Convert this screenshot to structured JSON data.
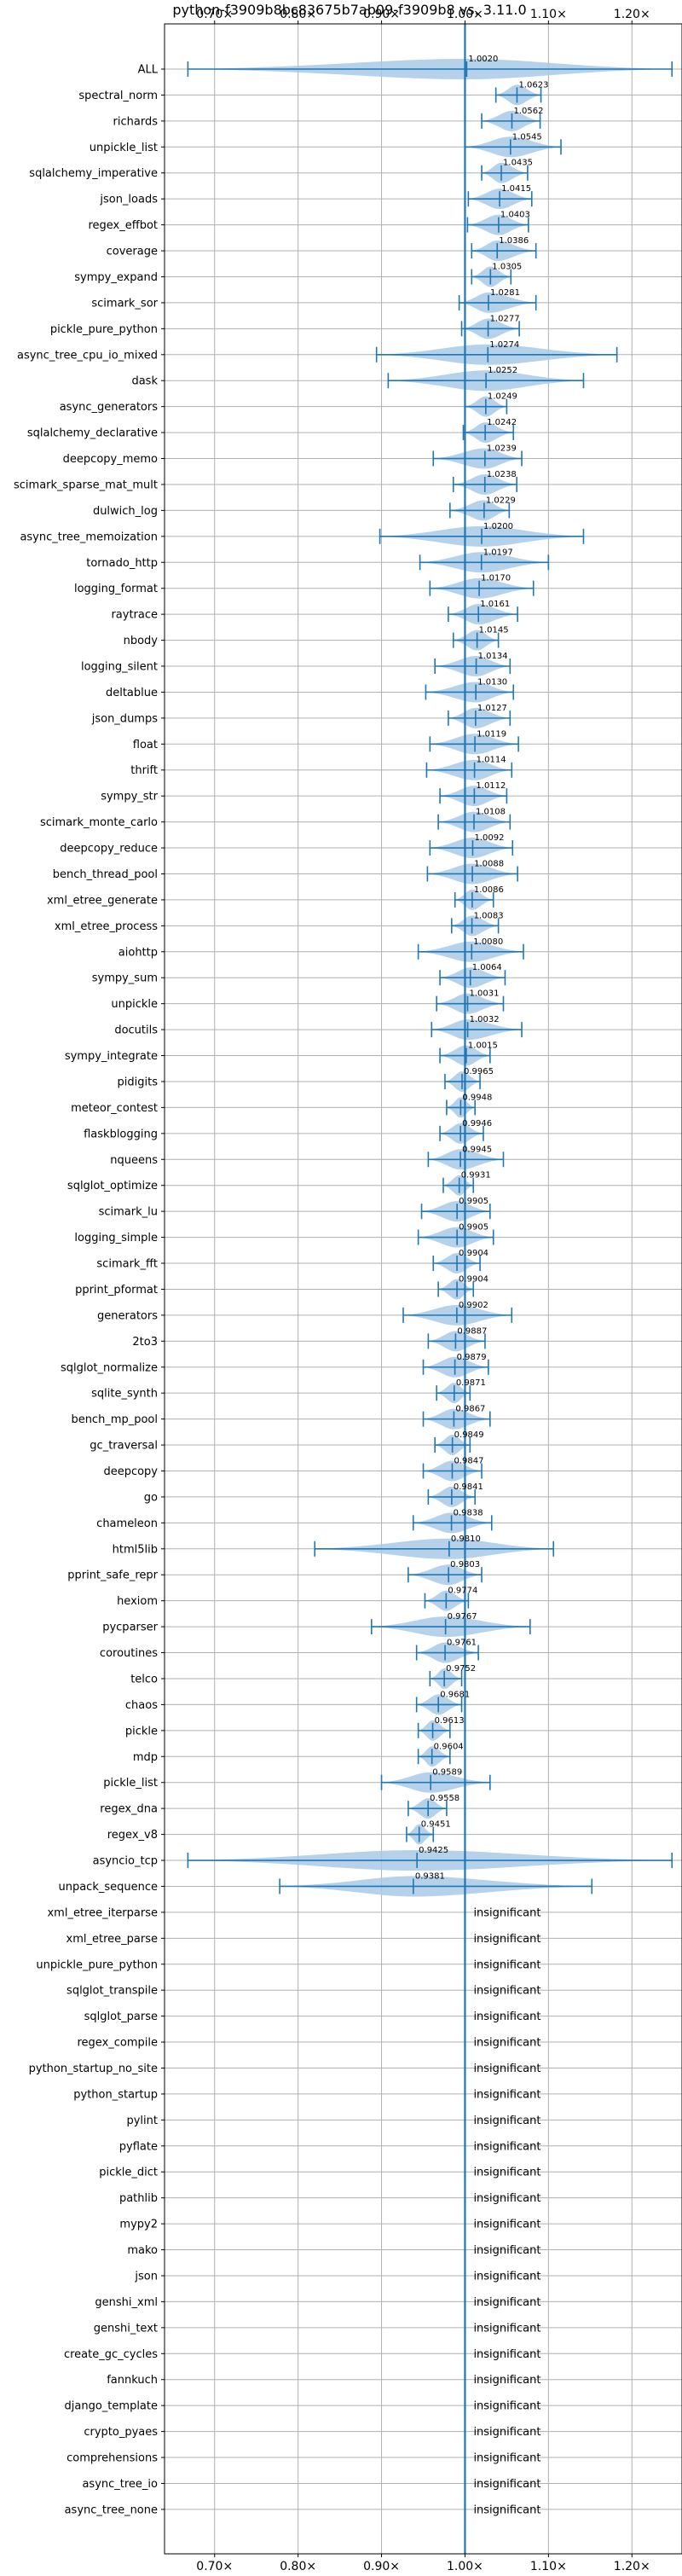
{
  "chart_data": {
    "type": "violin",
    "title": "python-f3909b8bc83675b7ab09-f3909b8 vs. 3.11.0",
    "xlim": [
      0.64,
      1.26
    ],
    "x_ticks": [
      0.7,
      0.8,
      0.9,
      1.0,
      1.1,
      1.2
    ],
    "x_tick_labels": [
      "0.70×",
      "0.80×",
      "0.90×",
      "1.00×",
      "1.10×",
      "1.20×"
    ],
    "grid": true,
    "reference_line": 1.0,
    "insignificant_label": "insignificant",
    "rows": [
      {
        "name": "ALL",
        "value": 1.002,
        "value_label": "1.0020",
        "min": 0.668,
        "max": 1.248,
        "width": 1.0
      },
      {
        "name": "spectral_norm",
        "value": 1.0623,
        "value_label": "1.0623",
        "min": 1.037,
        "max": 1.091,
        "width": 1.0
      },
      {
        "name": "richards",
        "value": 1.0562,
        "value_label": "1.0562",
        "min": 1.02,
        "max": 1.09,
        "width": 1.0
      },
      {
        "name": "unpickle_list",
        "value": 1.0545,
        "value_label": "1.0545",
        "min": 1.0,
        "max": 1.115,
        "width": 1.0
      },
      {
        "name": "sqlalchemy_imperative",
        "value": 1.0435,
        "value_label": "1.0435",
        "min": 1.02,
        "max": 1.075,
        "width": 1.0
      },
      {
        "name": "json_loads",
        "value": 1.0415,
        "value_label": "1.0415",
        "min": 1.004,
        "max": 1.08,
        "width": 1.0
      },
      {
        "name": "regex_effbot",
        "value": 1.0403,
        "value_label": "1.0403",
        "min": 1.003,
        "max": 1.076,
        "width": 1.0
      },
      {
        "name": "coverage",
        "value": 1.0386,
        "value_label": "1.0386",
        "min": 1.008,
        "max": 1.085,
        "width": 1.0
      },
      {
        "name": "sympy_expand",
        "value": 1.0305,
        "value_label": "1.0305",
        "min": 1.008,
        "max": 1.055,
        "width": 1.0
      },
      {
        "name": "scimark_sor",
        "value": 1.0281,
        "value_label": "1.0281",
        "min": 0.993,
        "max": 1.085,
        "width": 1.0
      },
      {
        "name": "pickle_pure_python",
        "value": 1.0277,
        "value_label": "1.0277",
        "min": 0.996,
        "max": 1.065,
        "width": 1.0
      },
      {
        "name": "async_tree_cpu_io_mixed",
        "value": 1.0274,
        "value_label": "1.0274",
        "min": 0.894,
        "max": 1.182,
        "width": 1.0
      },
      {
        "name": "dask",
        "value": 1.0252,
        "value_label": "1.0252",
        "min": 0.908,
        "max": 1.142,
        "width": 1.0
      },
      {
        "name": "async_generators",
        "value": 1.0249,
        "value_label": "1.0249",
        "min": 1.0,
        "max": 1.05,
        "width": 1.0
      },
      {
        "name": "sqlalchemy_declarative",
        "value": 1.0242,
        "value_label": "1.0242",
        "min": 0.998,
        "max": 1.058,
        "width": 1.0
      },
      {
        "name": "deepcopy_memo",
        "value": 1.0239,
        "value_label": "1.0239",
        "min": 0.962,
        "max": 1.068,
        "width": 1.0
      },
      {
        "name": "scimark_sparse_mat_mult",
        "value": 1.0238,
        "value_label": "1.0238",
        "min": 0.986,
        "max": 1.062,
        "width": 1.0
      },
      {
        "name": "dulwich_log",
        "value": 1.0229,
        "value_label": "1.0229",
        "min": 0.982,
        "max": 1.053,
        "width": 1.0
      },
      {
        "name": "async_tree_memoization",
        "value": 1.02,
        "value_label": "1.0200",
        "min": 0.898,
        "max": 1.142,
        "width": 1.0
      },
      {
        "name": "tornado_http",
        "value": 1.0197,
        "value_label": "1.0197",
        "min": 0.946,
        "max": 1.1,
        "width": 1.0
      },
      {
        "name": "logging_format",
        "value": 1.017,
        "value_label": "1.0170",
        "min": 0.958,
        "max": 1.082,
        "width": 1.0
      },
      {
        "name": "raytrace",
        "value": 1.0161,
        "value_label": "1.0161",
        "min": 0.98,
        "max": 1.063,
        "width": 1.0
      },
      {
        "name": "nbody",
        "value": 1.0145,
        "value_label": "1.0145",
        "min": 0.986,
        "max": 1.04,
        "width": 1.0
      },
      {
        "name": "logging_silent",
        "value": 1.0134,
        "value_label": "1.0134",
        "min": 0.964,
        "max": 1.054,
        "width": 1.0
      },
      {
        "name": "deltablue",
        "value": 1.013,
        "value_label": "1.0130",
        "min": 0.953,
        "max": 1.058,
        "width": 1.0
      },
      {
        "name": "json_dumps",
        "value": 1.0127,
        "value_label": "1.0127",
        "min": 0.98,
        "max": 1.054,
        "width": 1.0
      },
      {
        "name": "float",
        "value": 1.0119,
        "value_label": "1.0119",
        "min": 0.958,
        "max": 1.064,
        "width": 1.0
      },
      {
        "name": "thrift",
        "value": 1.0114,
        "value_label": "1.0114",
        "min": 0.954,
        "max": 1.056,
        "width": 1.0
      },
      {
        "name": "sympy_str",
        "value": 1.0112,
        "value_label": "1.0112",
        "min": 0.97,
        "max": 1.05,
        "width": 1.0
      },
      {
        "name": "scimark_monte_carlo",
        "value": 1.0108,
        "value_label": "1.0108",
        "min": 0.968,
        "max": 1.054,
        "width": 1.0
      },
      {
        "name": "deepcopy_reduce",
        "value": 1.0092,
        "value_label": "1.0092",
        "min": 0.958,
        "max": 1.057,
        "width": 1.0
      },
      {
        "name": "bench_thread_pool",
        "value": 1.0088,
        "value_label": "1.0088",
        "min": 0.955,
        "max": 1.063,
        "width": 1.0
      },
      {
        "name": "xml_etree_generate",
        "value": 1.0086,
        "value_label": "1.0086",
        "min": 0.988,
        "max": 1.034,
        "width": 1.0
      },
      {
        "name": "xml_etree_process",
        "value": 1.0083,
        "value_label": "1.0083",
        "min": 0.984,
        "max": 1.04,
        "width": 1.0
      },
      {
        "name": "aiohttp",
        "value": 1.008,
        "value_label": "1.0080",
        "min": 0.944,
        "max": 1.07,
        "width": 1.0
      },
      {
        "name": "sympy_sum",
        "value": 1.0064,
        "value_label": "1.0064",
        "min": 0.97,
        "max": 1.048,
        "width": 1.0
      },
      {
        "name": "unpickle",
        "value": 1.0031,
        "value_label": "1.0031",
        "min": 0.966,
        "max": 1.046,
        "width": 1.0
      },
      {
        "name": "docutils",
        "value": 1.0032,
        "value_label": "1.0032",
        "min": 0.96,
        "max": 1.068,
        "width": 1.0
      },
      {
        "name": "sympy_integrate",
        "value": 1.0015,
        "value_label": "1.0015",
        "min": 0.97,
        "max": 1.03,
        "width": 1.0
      },
      {
        "name": "pidigits",
        "value": 0.9965,
        "value_label": "0.9965",
        "min": 0.976,
        "max": 1.018,
        "width": 1.0
      },
      {
        "name": "meteor_contest",
        "value": 0.9948,
        "value_label": "0.9948",
        "min": 0.978,
        "max": 1.012,
        "width": 1.0
      },
      {
        "name": "flaskblogging",
        "value": 0.9946,
        "value_label": "0.9946",
        "min": 0.97,
        "max": 1.022,
        "width": 1.0
      },
      {
        "name": "nqueens",
        "value": 0.9945,
        "value_label": "0.9945",
        "min": 0.956,
        "max": 1.046,
        "width": 1.0
      },
      {
        "name": "sqlglot_optimize",
        "value": 0.9931,
        "value_label": "0.9931",
        "min": 0.974,
        "max": 1.01,
        "width": 1.0
      },
      {
        "name": "scimark_lu",
        "value": 0.9905,
        "value_label": "0.9905",
        "min": 0.948,
        "max": 1.03,
        "width": 1.0
      },
      {
        "name": "logging_simple",
        "value": 0.9905,
        "value_label": "0.9905",
        "min": 0.944,
        "max": 1.034,
        "width": 1.0
      },
      {
        "name": "scimark_fft",
        "value": 0.9904,
        "value_label": "0.9904",
        "min": 0.962,
        "max": 1.018,
        "width": 1.0
      },
      {
        "name": "pprint_pformat",
        "value": 0.9904,
        "value_label": "0.9904",
        "min": 0.968,
        "max": 1.01,
        "width": 1.0
      },
      {
        "name": "generators",
        "value": 0.9902,
        "value_label": "0.9902",
        "min": 0.926,
        "max": 1.056,
        "width": 1.0
      },
      {
        "name": "2to3",
        "value": 0.9887,
        "value_label": "0.9887",
        "min": 0.956,
        "max": 1.024,
        "width": 1.0
      },
      {
        "name": "sqlglot_normalize",
        "value": 0.9879,
        "value_label": "0.9879",
        "min": 0.95,
        "max": 1.028,
        "width": 1.0
      },
      {
        "name": "sqlite_synth",
        "value": 0.9871,
        "value_label": "0.9871",
        "min": 0.966,
        "max": 1.006,
        "width": 1.0
      },
      {
        "name": "bench_mp_pool",
        "value": 0.9867,
        "value_label": "0.9867",
        "min": 0.95,
        "max": 1.03,
        "width": 1.0
      },
      {
        "name": "gc_traversal",
        "value": 0.9849,
        "value_label": "0.9849",
        "min": 0.964,
        "max": 1.006,
        "width": 1.0
      },
      {
        "name": "deepcopy",
        "value": 0.9847,
        "value_label": "0.9847",
        "min": 0.95,
        "max": 1.02,
        "width": 1.0
      },
      {
        "name": "go",
        "value": 0.9841,
        "value_label": "0.9841",
        "min": 0.956,
        "max": 1.012,
        "width": 1.0
      },
      {
        "name": "chameleon",
        "value": 0.9838,
        "value_label": "0.9838",
        "min": 0.938,
        "max": 1.032,
        "width": 1.0
      },
      {
        "name": "html5lib",
        "value": 0.981,
        "value_label": "0.9810",
        "min": 0.82,
        "max": 1.106,
        "width": 1.0
      },
      {
        "name": "pprint_safe_repr",
        "value": 0.9803,
        "value_label": "0.9803",
        "min": 0.932,
        "max": 1.02,
        "width": 1.0
      },
      {
        "name": "hexiom",
        "value": 0.9774,
        "value_label": "0.9774",
        "min": 0.952,
        "max": 1.004,
        "width": 1.0
      },
      {
        "name": "pycparser",
        "value": 0.9767,
        "value_label": "0.9767",
        "min": 0.888,
        "max": 1.078,
        "width": 1.0
      },
      {
        "name": "coroutines",
        "value": 0.9761,
        "value_label": "0.9761",
        "min": 0.942,
        "max": 1.016,
        "width": 1.0
      },
      {
        "name": "telco",
        "value": 0.9752,
        "value_label": "0.9752",
        "min": 0.958,
        "max": 0.996,
        "width": 1.0
      },
      {
        "name": "chaos",
        "value": 0.9681,
        "value_label": "0.9681",
        "min": 0.942,
        "max": 0.996,
        "width": 1.0
      },
      {
        "name": "pickle",
        "value": 0.9613,
        "value_label": "0.9613",
        "min": 0.944,
        "max": 0.982,
        "width": 1.0
      },
      {
        "name": "mdp",
        "value": 0.9604,
        "value_label": "0.9604",
        "min": 0.944,
        "max": 0.982,
        "width": 1.0
      },
      {
        "name": "pickle_list",
        "value": 0.9589,
        "value_label": "0.9589",
        "min": 0.9,
        "max": 1.03,
        "width": 1.0
      },
      {
        "name": "regex_dna",
        "value": 0.9558,
        "value_label": "0.9558",
        "min": 0.932,
        "max": 0.978,
        "width": 1.0
      },
      {
        "name": "regex_v8",
        "value": 0.9451,
        "value_label": "0.9451",
        "min": 0.93,
        "max": 0.962,
        "width": 1.0
      },
      {
        "name": "asyncio_tcp",
        "value": 0.9425,
        "value_label": "0.9425",
        "min": 0.668,
        "max": 1.248,
        "width": 1.0
      },
      {
        "name": "unpack_sequence",
        "value": 0.9381,
        "value_label": "0.9381",
        "min": 0.778,
        "max": 1.152,
        "width": 1.0
      },
      {
        "name": "xml_etree_iterparse",
        "insignificant": true
      },
      {
        "name": "xml_etree_parse",
        "insignificant": true
      },
      {
        "name": "unpickle_pure_python",
        "insignificant": true
      },
      {
        "name": "sqlglot_transpile",
        "insignificant": true
      },
      {
        "name": "sqlglot_parse",
        "insignificant": true
      },
      {
        "name": "regex_compile",
        "insignificant": true
      },
      {
        "name": "python_startup_no_site",
        "insignificant": true
      },
      {
        "name": "python_startup",
        "insignificant": true
      },
      {
        "name": "pylint",
        "insignificant": true
      },
      {
        "name": "pyflate",
        "insignificant": true
      },
      {
        "name": "pickle_dict",
        "insignificant": true
      },
      {
        "name": "pathlib",
        "insignificant": true
      },
      {
        "name": "mypy2",
        "insignificant": true
      },
      {
        "name": "mako",
        "insignificant": true
      },
      {
        "name": "json",
        "insignificant": true
      },
      {
        "name": "genshi_xml",
        "insignificant": true
      },
      {
        "name": "genshi_text",
        "insignificant": true
      },
      {
        "name": "create_gc_cycles",
        "insignificant": true
      },
      {
        "name": "fannkuch",
        "insignificant": true
      },
      {
        "name": "django_template",
        "insignificant": true
      },
      {
        "name": "crypto_pyaes",
        "insignificant": true
      },
      {
        "name": "comprehensions",
        "insignificant": true
      },
      {
        "name": "async_tree_io",
        "insignificant": true
      },
      {
        "name": "async_tree_none",
        "insignificant": true
      }
    ],
    "colors": {
      "violin_fill": "#a9c9e6",
      "line": "#1f77b4",
      "grid": "#b0b0b0",
      "axis": "#000000"
    }
  }
}
